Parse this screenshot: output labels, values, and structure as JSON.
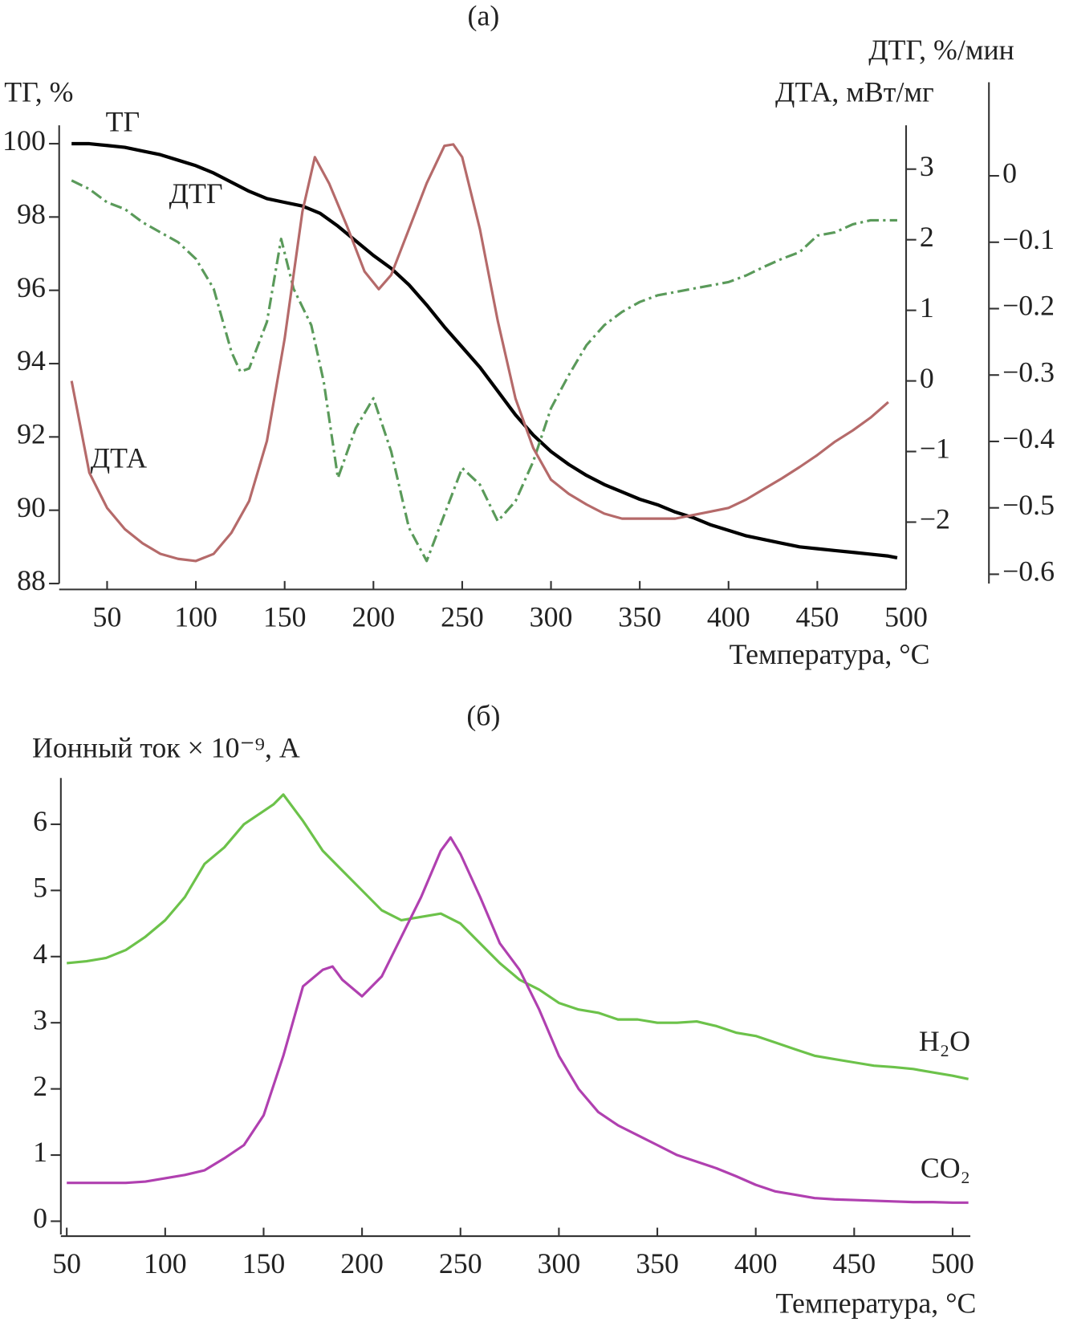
{
  "chart_data": [
    {
      "type": "line",
      "title": "(а)",
      "ylabel": "ТГ, %",
      "y2label": "ДТА, мВт/мг",
      "y3label": "ДТГ, %/мин",
      "xlabel": "Температура, °C",
      "xlim": [
        23,
        500
      ],
      "xticks": [
        50,
        100,
        150,
        200,
        250,
        300,
        350,
        400,
        450,
        500
      ],
      "ylim": [
        88,
        100.5
      ],
      "yticks": [
        88,
        90,
        92,
        94,
        96,
        98,
        100
      ],
      "y2lim": [
        -2.87,
        3.62
      ],
      "y2ticks": [
        {
          "value": -2,
          "label": "−2"
        },
        {
          "value": -1,
          "label": "−1"
        },
        0,
        1,
        2,
        3
      ],
      "y3lim": [
        -0.614,
        0.076
      ],
      "y3ticks": [
        {
          "value": -0.6,
          "label": "−0.6"
        },
        {
          "value": -0.5,
          "label": "−0.5"
        },
        {
          "value": -0.4,
          "label": "−0.4"
        },
        {
          "value": -0.3,
          "label": "−0.3"
        },
        {
          "value": -0.2,
          "label": "−0.2"
        },
        {
          "value": -0.1,
          "label": "−0.1"
        },
        0
      ],
      "series": [
        {
          "name": "ТГ",
          "color": "#000000",
          "axis": "y",
          "line_style": "solid",
          "x": [
            30,
            40,
            50,
            60,
            70,
            80,
            90,
            100,
            110,
            120,
            130,
            140,
            150,
            160,
            170,
            180,
            190,
            200,
            210,
            220,
            230,
            240,
            250,
            260,
            270,
            280,
            290,
            300,
            310,
            320,
            330,
            340,
            350,
            360,
            370,
            380,
            390,
            400,
            410,
            420,
            430,
            440,
            450,
            460,
            470,
            480,
            490,
            495
          ],
          "values": [
            100,
            100,
            99.95,
            99.9,
            99.8,
            99.7,
            99.55,
            99.4,
            99.2,
            98.95,
            98.7,
            98.5,
            98.4,
            98.3,
            98.1,
            97.75,
            97.35,
            96.95,
            96.6,
            96.15,
            95.6,
            95.0,
            94.45,
            93.9,
            93.25,
            92.6,
            92.05,
            91.6,
            91.25,
            90.95,
            90.7,
            90.5,
            90.3,
            90.15,
            89.95,
            89.8,
            89.6,
            89.45,
            89.3,
            89.2,
            89.1,
            89.0,
            88.95,
            88.9,
            88.85,
            88.8,
            88.75,
            88.7
          ]
        },
        {
          "name": "ДТГ",
          "color": "#5a9a5a",
          "axis": "y3",
          "line_style": "dashdot",
          "x": [
            30,
            40,
            50,
            60,
            70,
            80,
            90,
            100,
            110,
            120,
            125,
            130,
            140,
            148,
            155,
            165,
            172,
            180,
            190,
            200,
            210,
            220,
            230,
            240,
            250,
            260,
            270,
            280,
            290,
            300,
            310,
            320,
            330,
            340,
            350,
            360,
            370,
            380,
            390,
            400,
            410,
            420,
            430,
            440,
            450,
            460,
            470,
            480,
            495
          ],
          "values": [
            -0.007,
            -0.02,
            -0.04,
            -0.05,
            -0.07,
            -0.085,
            -0.1,
            -0.125,
            -0.17,
            -0.265,
            -0.295,
            -0.29,
            -0.22,
            -0.095,
            -0.17,
            -0.225,
            -0.31,
            -0.455,
            -0.38,
            -0.335,
            -0.415,
            -0.53,
            -0.58,
            -0.51,
            -0.44,
            -0.465,
            -0.52,
            -0.49,
            -0.43,
            -0.35,
            -0.3,
            -0.255,
            -0.225,
            -0.205,
            -0.19,
            -0.18,
            -0.175,
            -0.17,
            -0.165,
            -0.16,
            -0.15,
            -0.137,
            -0.125,
            -0.115,
            -0.09,
            -0.085,
            -0.073,
            -0.067,
            -0.067
          ]
        },
        {
          "name": "ДТА",
          "color": "#b56a6a",
          "axis": "y2",
          "line_style": "solid",
          "x": [
            30,
            40,
            50,
            60,
            70,
            80,
            90,
            100,
            110,
            120,
            130,
            140,
            150,
            160,
            167,
            175,
            185,
            195,
            203,
            210,
            220,
            230,
            240,
            245,
            250,
            260,
            270,
            280,
            290,
            300,
            310,
            320,
            330,
            340,
            350,
            360,
            370,
            380,
            390,
            400,
            410,
            420,
            430,
            440,
            450,
            460,
            470,
            480,
            490
          ],
          "values": [
            0,
            -1.3,
            -1.8,
            -2.1,
            -2.3,
            -2.45,
            -2.52,
            -2.55,
            -2.45,
            -2.15,
            -1.7,
            -0.85,
            0.6,
            2.4,
            3.17,
            2.8,
            2.2,
            1.55,
            1.3,
            1.5,
            2.15,
            2.8,
            3.33,
            3.35,
            3.17,
            2.15,
            0.85,
            -0.25,
            -0.95,
            -1.4,
            -1.6,
            -1.75,
            -1.88,
            -1.95,
            -1.95,
            -1.95,
            -1.95,
            -1.9,
            -1.85,
            -1.8,
            -1.68,
            -1.53,
            -1.38,
            -1.22,
            -1.05,
            -0.86,
            -0.7,
            -0.52,
            -0.3
          ]
        }
      ]
    },
    {
      "type": "line",
      "title": "(б)",
      "ylabel": "Ионный ток × 10⁻⁹, А",
      "xlabel": "Температура, °C",
      "xlim": [
        47,
        509
      ],
      "xticks": [
        50,
        100,
        150,
        200,
        250,
        300,
        350,
        400,
        450,
        500
      ],
      "ylim": [
        -0.2,
        6.7
      ],
      "yticks": [
        0,
        1,
        2,
        3,
        4,
        5,
        6
      ],
      "series": [
        {
          "name": "H₂O",
          "color": "#6cc24a",
          "axis": "y",
          "line_style": "solid",
          "x": [
            50,
            60,
            70,
            80,
            90,
            100,
            110,
            120,
            130,
            140,
            150,
            155,
            160,
            170,
            180,
            190,
            200,
            210,
            220,
            230,
            240,
            250,
            260,
            270,
            280,
            290,
            300,
            310,
            320,
            330,
            340,
            350,
            360,
            370,
            380,
            390,
            400,
            410,
            420,
            430,
            440,
            450,
            460,
            470,
            480,
            490,
            500,
            508
          ],
          "values": [
            3.9,
            3.93,
            3.98,
            4.1,
            4.3,
            4.55,
            4.9,
            5.4,
            5.65,
            6.0,
            6.2,
            6.3,
            6.45,
            6.05,
            5.6,
            5.3,
            5.0,
            4.7,
            4.55,
            4.6,
            4.65,
            4.5,
            4.2,
            3.9,
            3.65,
            3.5,
            3.3,
            3.2,
            3.15,
            3.05,
            3.05,
            3.0,
            3.0,
            3.02,
            2.95,
            2.85,
            2.8,
            2.7,
            2.6,
            2.5,
            2.45,
            2.4,
            2.35,
            2.33,
            2.3,
            2.25,
            2.2,
            2.15
          ]
        },
        {
          "name": "CO₂",
          "color": "#b040b0",
          "axis": "y",
          "line_style": "solid",
          "x": [
            50,
            60,
            70,
            80,
            90,
            100,
            110,
            120,
            130,
            140,
            150,
            160,
            170,
            180,
            185,
            190,
            200,
            210,
            220,
            230,
            240,
            245,
            250,
            260,
            270,
            280,
            290,
            300,
            310,
            320,
            330,
            340,
            350,
            360,
            370,
            380,
            390,
            400,
            410,
            420,
            430,
            440,
            450,
            460,
            470,
            480,
            490,
            500,
            508
          ],
          "values": [
            0.58,
            0.58,
            0.58,
            0.58,
            0.6,
            0.65,
            0.7,
            0.77,
            0.95,
            1.15,
            1.6,
            2.5,
            3.55,
            3.8,
            3.85,
            3.65,
            3.4,
            3.7,
            4.3,
            4.9,
            5.6,
            5.8,
            5.55,
            4.9,
            4.2,
            3.8,
            3.2,
            2.5,
            2.0,
            1.65,
            1.45,
            1.3,
            1.15,
            1.0,
            0.9,
            0.8,
            0.68,
            0.55,
            0.45,
            0.4,
            0.35,
            0.33,
            0.32,
            0.31,
            0.3,
            0.29,
            0.29,
            0.28,
            0.28
          ]
        }
      ]
    }
  ]
}
